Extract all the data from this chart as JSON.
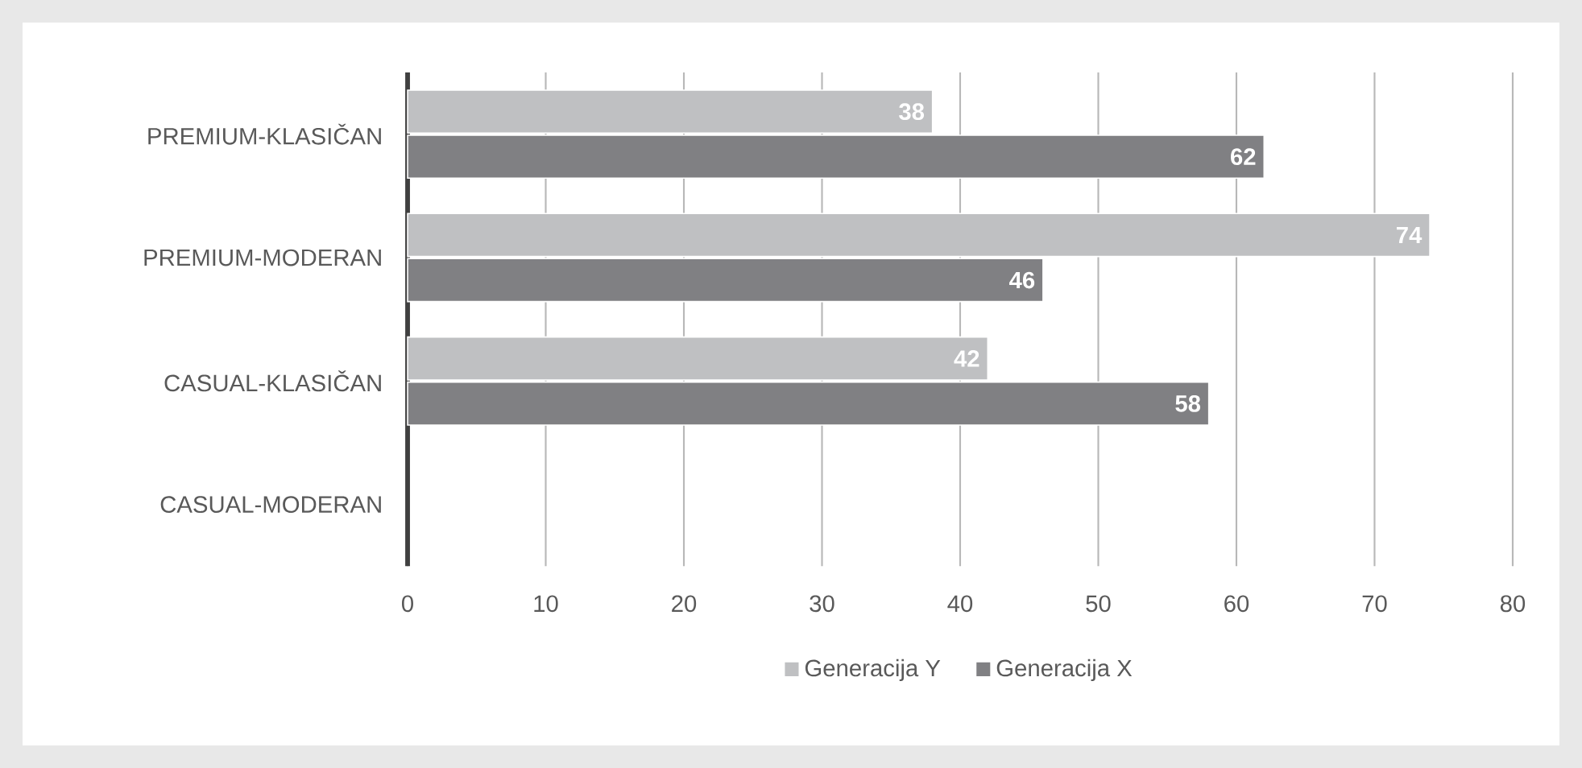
{
  "chart_data": {
    "type": "bar",
    "orientation": "horizontal",
    "categories": [
      "PREMIUM-KLASIČAN",
      "PREMIUM-MODERAN",
      "CASUAL-KLASIČAN",
      "CASUAL-MODERAN"
    ],
    "series": [
      {
        "name": "Generacija Y",
        "color": "#bfc0c2",
        "values": [
          38,
          74,
          42,
          null
        ]
      },
      {
        "name": "Generacija X",
        "color": "#808083",
        "values": [
          62,
          46,
          58,
          null
        ]
      }
    ],
    "xlim": [
      0,
      80
    ],
    "xticks": [
      0,
      10,
      20,
      30,
      40,
      50,
      60,
      70,
      80
    ],
    "grid": "x",
    "legend": "bottom",
    "data_labels": true
  }
}
